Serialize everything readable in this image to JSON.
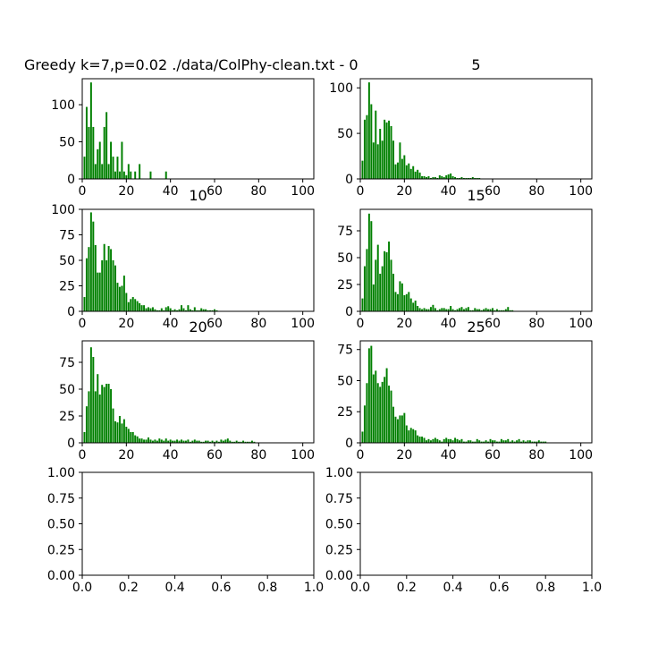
{
  "chart_data": [
    {
      "type": "bar",
      "title": "Greedy k=7,p=0.02 ./data/ColPhy-clean.txt - 0",
      "title_align": "left",
      "bar_color": "#008000",
      "xlim": [
        0,
        105
      ],
      "ylim": [
        0,
        135
      ],
      "xticks": [
        0,
        20,
        40,
        60,
        80,
        100
      ],
      "xtick_labels": [
        "0",
        "20",
        "40",
        "60",
        "80",
        "100"
      ],
      "yticks": [
        0,
        50,
        100
      ],
      "ytick_labels": [
        "0",
        "50",
        "100"
      ],
      "x": [
        1,
        2,
        3,
        4,
        5,
        6,
        7,
        8,
        9,
        10,
        11,
        12,
        13,
        14,
        15,
        16,
        17,
        18,
        19,
        20,
        21,
        22,
        24,
        26,
        31,
        38
      ],
      "values": [
        30,
        97,
        70,
        130,
        70,
        20,
        40,
        50,
        20,
        70,
        90,
        20,
        50,
        30,
        10,
        30,
        10,
        50,
        10,
        5,
        20,
        10,
        10,
        20,
        10,
        10
      ]
    },
    {
      "type": "bar",
      "title": "5",
      "title_align": "center",
      "bar_color": "#008000",
      "xlim": [
        0,
        105
      ],
      "ylim": [
        0,
        110
      ],
      "xticks": [
        0,
        20,
        40,
        60,
        80,
        100
      ],
      "xtick_labels": [
        "0",
        "20",
        "40",
        "60",
        "80",
        "100"
      ],
      "yticks": [
        0,
        50,
        100
      ],
      "ytick_labels": [
        "0",
        "50",
        "100"
      ],
      "x": [
        1,
        2,
        3,
        4,
        5,
        6,
        7,
        8,
        9,
        10,
        11,
        12,
        13,
        14,
        15,
        16,
        17,
        18,
        19,
        20,
        21,
        22,
        23,
        24,
        25,
        26,
        27,
        28,
        29,
        30,
        31,
        32,
        33,
        34,
        35,
        36,
        37,
        38,
        39,
        40,
        41,
        42,
        43,
        44,
        45,
        46,
        47,
        48,
        49,
        50,
        51,
        52,
        53,
        54
      ],
      "values": [
        20,
        65,
        70,
        106,
        82,
        40,
        75,
        38,
        55,
        42,
        65,
        62,
        64,
        58,
        42,
        16,
        18,
        40,
        22,
        26,
        15,
        17,
        11,
        14,
        8,
        10,
        7,
        3,
        3,
        2,
        3,
        1,
        2,
        2,
        1,
        4,
        3,
        2,
        4,
        5,
        6,
        3,
        2,
        1,
        1,
        2,
        1,
        1,
        1,
        1,
        2,
        1,
        1,
        1
      ]
    },
    {
      "type": "bar",
      "title": "10",
      "title_align": "center",
      "bar_color": "#008000",
      "xlim": [
        0,
        105
      ],
      "ylim": [
        0,
        100
      ],
      "xticks": [
        0,
        20,
        40,
        60,
        80,
        100
      ],
      "xtick_labels": [
        "0",
        "20",
        "40",
        "60",
        "80",
        "100"
      ],
      "yticks": [
        0,
        25,
        50,
        75,
        100
      ],
      "ytick_labels": [
        "0",
        "25",
        "50",
        "75",
        "100"
      ],
      "x": [
        1,
        2,
        3,
        4,
        5,
        6,
        7,
        8,
        9,
        10,
        11,
        12,
        13,
        14,
        15,
        16,
        17,
        18,
        19,
        20,
        21,
        22,
        23,
        24,
        25,
        26,
        27,
        28,
        29,
        30,
        31,
        32,
        33,
        34,
        35,
        36,
        37,
        38,
        39,
        40,
        41,
        42,
        43,
        44,
        45,
        46,
        47,
        48,
        49,
        50,
        51,
        52,
        53,
        54,
        55,
        56,
        57,
        58,
        59,
        60,
        61
      ],
      "values": [
        14,
        52,
        63,
        97,
        88,
        65,
        38,
        38,
        50,
        66,
        50,
        64,
        61,
        50,
        45,
        28,
        24,
        25,
        35,
        18,
        9,
        12,
        14,
        12,
        10,
        8,
        6,
        6,
        3,
        4,
        3,
        4,
        2,
        1,
        1,
        3,
        1,
        4,
        5,
        3,
        1,
        2,
        1,
        2,
        6,
        3,
        1,
        6,
        2,
        1,
        4,
        1,
        1,
        3,
        2,
        2,
        1,
        1,
        1,
        2,
        1
      ]
    },
    {
      "type": "bar",
      "title": "15",
      "title_align": "center",
      "bar_color": "#008000",
      "xlim": [
        0,
        105
      ],
      "ylim": [
        0,
        95
      ],
      "xticks": [
        0,
        20,
        40,
        60,
        80,
        100
      ],
      "xtick_labels": [
        "0",
        "20",
        "40",
        "60",
        "80",
        "100"
      ],
      "yticks": [
        0,
        25,
        50,
        75
      ],
      "ytick_labels": [
        "0",
        "25",
        "50",
        "75"
      ],
      "x": [
        1,
        2,
        3,
        4,
        5,
        6,
        7,
        8,
        9,
        10,
        11,
        12,
        13,
        14,
        15,
        16,
        17,
        18,
        19,
        20,
        21,
        22,
        23,
        24,
        25,
        26,
        27,
        28,
        29,
        30,
        31,
        32,
        33,
        34,
        35,
        36,
        37,
        38,
        39,
        40,
        41,
        42,
        43,
        44,
        45,
        46,
        47,
        48,
        49,
        50,
        51,
        52,
        53,
        54,
        55,
        56,
        57,
        58,
        59,
        60,
        61,
        62,
        63,
        64,
        65,
        66,
        67,
        68,
        69
      ],
      "values": [
        12,
        42,
        58,
        91,
        84,
        25,
        48,
        62,
        35,
        42,
        56,
        55,
        65,
        48,
        35,
        18,
        16,
        28,
        26,
        15,
        16,
        18,
        12,
        8,
        10,
        5,
        3,
        2,
        3,
        2,
        2,
        4,
        6,
        3,
        1,
        2,
        3,
        3,
        2,
        2,
        5,
        2,
        1,
        2,
        3,
        4,
        2,
        3,
        4,
        1,
        1,
        3,
        2,
        2,
        1,
        2,
        3,
        2,
        2,
        3,
        1,
        2,
        1,
        1,
        1,
        2,
        4,
        1,
        1
      ]
    },
    {
      "type": "bar",
      "title": "20",
      "title_align": "center",
      "bar_color": "#008000",
      "xlim": [
        0,
        105
      ],
      "ylim": [
        0,
        95
      ],
      "xticks": [
        0,
        20,
        40,
        60,
        80,
        100
      ],
      "xtick_labels": [
        "0",
        "20",
        "40",
        "60",
        "80",
        "100"
      ],
      "yticks": [
        0,
        25,
        50,
        75
      ],
      "ytick_labels": [
        "0",
        "25",
        "50",
        "75"
      ],
      "x": [
        1,
        2,
        3,
        4,
        5,
        6,
        7,
        8,
        9,
        10,
        11,
        12,
        13,
        14,
        15,
        16,
        17,
        18,
        19,
        20,
        21,
        22,
        23,
        24,
        25,
        26,
        27,
        28,
        29,
        30,
        31,
        32,
        33,
        34,
        35,
        36,
        37,
        38,
        39,
        40,
        41,
        42,
        43,
        44,
        45,
        46,
        47,
        48,
        49,
        50,
        51,
        52,
        53,
        54,
        55,
        56,
        57,
        58,
        59,
        60,
        61,
        62,
        63,
        64,
        65,
        66,
        67,
        68,
        69,
        70,
        71,
        72,
        73,
        74,
        75,
        76,
        77,
        78
      ],
      "values": [
        10,
        34,
        48,
        89,
        80,
        48,
        64,
        45,
        54,
        52,
        55,
        55,
        50,
        32,
        20,
        19,
        25,
        18,
        22,
        15,
        13,
        10,
        10,
        7,
        6,
        4,
        4,
        3,
        3,
        5,
        3,
        2,
        3,
        2,
        4,
        3,
        2,
        4,
        2,
        3,
        2,
        2,
        3,
        2,
        3,
        2,
        2,
        3,
        1,
        2,
        3,
        2,
        2,
        1,
        1,
        2,
        2,
        1,
        2,
        1,
        2,
        1,
        3,
        2,
        3,
        4,
        2,
        1,
        1,
        2,
        1,
        1,
        2,
        1,
        1,
        1,
        2,
        1
      ]
    },
    {
      "type": "bar",
      "title": "25",
      "title_align": "center",
      "bar_color": "#008000",
      "xlim": [
        0,
        105
      ],
      "ylim": [
        0,
        82
      ],
      "xticks": [
        0,
        20,
        40,
        60,
        80,
        100
      ],
      "xtick_labels": [
        "0",
        "20",
        "40",
        "60",
        "80",
        "100"
      ],
      "yticks": [
        0,
        25,
        50,
        75
      ],
      "ytick_labels": [
        "0",
        "25",
        "50",
        "75"
      ],
      "x": [
        1,
        2,
        3,
        4,
        5,
        6,
        7,
        8,
        9,
        10,
        11,
        12,
        13,
        14,
        15,
        16,
        17,
        18,
        19,
        20,
        21,
        22,
        23,
        24,
        25,
        26,
        27,
        28,
        29,
        30,
        31,
        32,
        33,
        34,
        35,
        36,
        37,
        38,
        39,
        40,
        41,
        42,
        43,
        44,
        45,
        46,
        47,
        48,
        49,
        50,
        51,
        52,
        53,
        54,
        55,
        56,
        57,
        58,
        59,
        60,
        61,
        62,
        63,
        64,
        65,
        66,
        67,
        68,
        69,
        70,
        71,
        72,
        73,
        74,
        75,
        76,
        77,
        78,
        79,
        80,
        81,
        82,
        83,
        84
      ],
      "values": [
        9,
        30,
        48,
        76,
        78,
        55,
        58,
        48,
        45,
        49,
        53,
        60,
        46,
        42,
        29,
        21,
        19,
        22,
        22,
        24,
        14,
        10,
        12,
        11,
        10,
        6,
        5,
        5,
        4,
        2,
        3,
        2,
        3,
        4,
        3,
        2,
        1,
        3,
        4,
        3,
        3,
        2,
        4,
        3,
        2,
        3,
        1,
        1,
        2,
        2,
        1,
        1,
        3,
        2,
        1,
        1,
        2,
        1,
        3,
        2,
        2,
        1,
        1,
        3,
        2,
        2,
        3,
        1,
        2,
        1,
        2,
        3,
        1,
        2,
        1,
        2,
        2,
        1,
        1,
        1,
        2,
        1,
        1,
        1
      ]
    },
    {
      "type": "bar",
      "title": "",
      "xlim": [
        0,
        1
      ],
      "ylim": [
        0,
        1
      ],
      "xticks": [
        0,
        0.2,
        0.4,
        0.6,
        0.8,
        1.0
      ],
      "xtick_labels": [
        "0.0",
        "0.2",
        "0.4",
        "0.6",
        "0.8",
        "1.0"
      ],
      "yticks": [
        0,
        0.25,
        0.5,
        0.75,
        1.0
      ],
      "ytick_labels": [
        "0.00",
        "0.25",
        "0.50",
        "0.75",
        "1.00"
      ],
      "x": [],
      "values": []
    },
    {
      "type": "bar",
      "title": "",
      "xlim": [
        0,
        1
      ],
      "ylim": [
        0,
        1
      ],
      "xticks": [
        0,
        0.2,
        0.4,
        0.6,
        0.8,
        1.0
      ],
      "xtick_labels": [
        "0.0",
        "0.2",
        "0.4",
        "0.6",
        "0.8",
        "1.0"
      ],
      "yticks": [
        0,
        0.25,
        0.5,
        0.75,
        1.0
      ],
      "ytick_labels": [
        "0.00",
        "0.25",
        "0.50",
        "0.75",
        "1.00"
      ],
      "x": [],
      "values": []
    }
  ]
}
